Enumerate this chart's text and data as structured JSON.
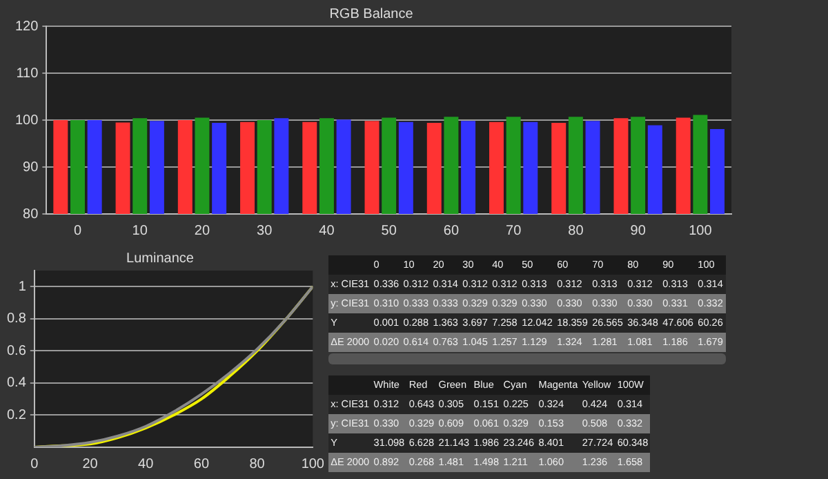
{
  "chart_data": [
    {
      "type": "bar",
      "title": "RGB Balance",
      "categories": [
        "0",
        "10",
        "20",
        "30",
        "40",
        "50",
        "60",
        "70",
        "80",
        "90",
        "100"
      ],
      "series": [
        {
          "color": "#ff3333",
          "values": [
            100,
            99.5,
            100,
            99.6,
            99.6,
            99.8,
            99.4,
            99.6,
            99.4,
            100.4,
            100.5
          ]
        },
        {
          "color": "#1f9a1f",
          "values": [
            100,
            100.4,
            100.5,
            100,
            100.4,
            100.5,
            100.7,
            100.7,
            100.7,
            100.7,
            101.1
          ]
        },
        {
          "color": "#3333ff",
          "values": [
            100,
            99.8,
            99.4,
            100.4,
            100.1,
            99.6,
            99.8,
            99.6,
            99.8,
            98.9,
            98.1
          ]
        }
      ],
      "ylim": [
        80,
        120
      ],
      "yticks": [
        80,
        90,
        100,
        110,
        120
      ],
      "grid": "y",
      "legend": false
    },
    {
      "type": "line",
      "title": "Luminance",
      "x": [
        0,
        10,
        20,
        30,
        40,
        50,
        60,
        70,
        80,
        90,
        100
      ],
      "series": [
        {
          "color": "#8a8a8a",
          "values": [
            0,
            0.01,
            0.03,
            0.07,
            0.13,
            0.22,
            0.33,
            0.46,
            0.61,
            0.79,
            1
          ]
        },
        {
          "color": "#f0f000",
          "values": [
            0,
            0.01,
            0.02,
            0.06,
            0.12,
            0.2,
            0.3,
            0.44,
            0.6,
            0.79,
            1
          ]
        }
      ],
      "xlim": [
        0,
        100
      ],
      "xticks": [
        0,
        20,
        40,
        60,
        80,
        100
      ],
      "ylim": [
        0,
        1.1
      ],
      "yticks": [
        0.2,
        0.4,
        0.6,
        0.8,
        1
      ],
      "grid": "y",
      "legend": false,
      "marker": "none",
      "line_style": "solid"
    },
    {
      "type": "heatmap",
      "categories": [
        "0",
        "10",
        "20",
        "30",
        "40",
        "50",
        "60",
        "70",
        "80",
        "90",
        "100"
      ],
      "y_categories": [
        "x: CIE31",
        "y: CIE31",
        "Y",
        "ΔE 2000"
      ],
      "cells": [
        [
          0.336,
          0.312,
          0.314,
          0.312,
          0.312,
          0.313,
          0.312,
          0.313,
          0.312,
          0.313,
          0.314
        ],
        [
          0.31,
          0.333,
          0.333,
          0.329,
          0.329,
          0.33,
          0.33,
          0.33,
          0.33,
          0.331,
          0.332
        ],
        [
          0.001,
          0.288,
          1.363,
          3.697,
          7.258,
          12.042,
          18.359,
          26.565,
          36.348,
          47.606,
          60.26
        ],
        [
          0.02,
          0.614,
          0.763,
          1.045,
          1.257,
          1.129,
          1.324,
          1.281,
          1.081,
          1.186,
          1.679
        ]
      ],
      "cell_labels": [
        [
          "0.336",
          "0.312",
          "0.314",
          "0.312",
          "0.312",
          "0.313",
          "0.312",
          "0.313",
          "0.312",
          "0.313",
          "0.314"
        ],
        [
          "0.310",
          "0.333",
          "0.333",
          "0.329",
          "0.329",
          "0.330",
          "0.330",
          "0.330",
          "0.330",
          "0.331",
          "0.332"
        ],
        [
          "0.001",
          "0.288",
          "1.363",
          "3.697",
          "7.258",
          "12.042",
          "18.359",
          "26.565",
          "36.348",
          "47.606",
          "60.26"
        ],
        [
          "0.020",
          "0.614",
          "0.763",
          "1.045",
          "1.257",
          "1.129",
          "1.324",
          "1.281",
          "1.081",
          "1.186",
          "1.679"
        ]
      ]
    },
    {
      "type": "heatmap",
      "categories": [
        "White",
        "Red",
        "Green",
        "Blue",
        "Cyan",
        "Magenta",
        "Yellow",
        "100W"
      ],
      "y_categories": [
        "x: CIE31",
        "y: CIE31",
        "Y",
        "ΔE 2000"
      ],
      "cells": [
        [
          0.312,
          0.643,
          0.305,
          0.151,
          0.225,
          0.324,
          0.424,
          0.314
        ],
        [
          0.33,
          0.329,
          0.609,
          0.061,
          0.329,
          0.153,
          0.508,
          0.332
        ],
        [
          31.098,
          6.628,
          21.143,
          1.986,
          23.246,
          8.401,
          27.724,
          60.348
        ],
        [
          0.892,
          0.268,
          1.481,
          1.498,
          1.211,
          1.06,
          1.236,
          1.658
        ]
      ],
      "cell_labels": [
        [
          "0.312",
          "0.643",
          "0.305",
          "0.151",
          "0.225",
          "0.324",
          "0.424",
          "0.314"
        ],
        [
          "0.330",
          "0.329",
          "0.609",
          "0.061",
          "0.329",
          "0.153",
          "0.508",
          "0.332"
        ],
        [
          "31.098",
          "6.628",
          "21.143",
          "1.986",
          "23.246",
          "8.401",
          "27.724",
          "60.348"
        ],
        [
          "0.892",
          "0.268",
          "1.481",
          "1.498",
          "1.211",
          "1.060",
          "1.236",
          "1.658"
        ]
      ]
    }
  ]
}
